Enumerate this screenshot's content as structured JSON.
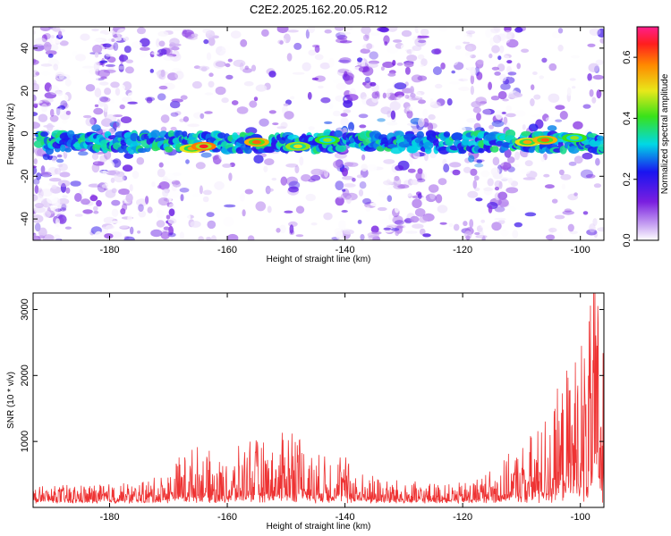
{
  "title": "C2E2.2025.162.20.05.R12",
  "chart_data": [
    {
      "type": "heatmap",
      "xlabel": "Height of straight line (km)",
      "ylabel": "Frequency (Hz)",
      "xlim": [
        -193,
        -96
      ],
      "ylim": [
        -50,
        50
      ],
      "x_ticks": [
        -180,
        -160,
        -140,
        -120,
        -100
      ],
      "y_ticks": [
        -40,
        -20,
        0,
        20,
        40
      ],
      "colorbar": {
        "label": "Normalized spectral amplitude",
        "range": [
          0,
          0.7
        ],
        "ticks": [
          0.0,
          0.2,
          0.4,
          0.6
        ]
      },
      "band": {
        "center_frequency": -4,
        "half_width": 4,
        "peaks": [
          {
            "x": -166,
            "y": -7,
            "value": 0.55
          },
          {
            "x": -164,
            "y": -6,
            "value": 0.65
          },
          {
            "x": -155,
            "y": -4,
            "value": 0.6
          },
          {
            "x": -148,
            "y": -6,
            "value": 0.5
          },
          {
            "x": -143,
            "y": -3,
            "value": 0.45
          },
          {
            "x": -109,
            "y": -4,
            "value": 0.55
          },
          {
            "x": -106,
            "y": -3,
            "value": 0.6
          },
          {
            "x": -101,
            "y": -2,
            "value": 0.45
          }
        ]
      }
    },
    {
      "type": "line",
      "xlabel": "Height of straight line (km)",
      "ylabel": "SNR (10 * v/v)",
      "xlim": [
        -193,
        -96
      ],
      "ylim": [
        0,
        3250
      ],
      "x_ticks": [
        -180,
        -160,
        -140,
        -120,
        -100
      ],
      "y_ticks": [
        1000,
        2000,
        3000
      ],
      "color": "#ee3333",
      "envelope": [
        {
          "x": -193,
          "y": 250
        },
        {
          "x": -175,
          "y": 300
        },
        {
          "x": -170,
          "y": 450
        },
        {
          "x": -168,
          "y": 700
        },
        {
          "x": -165,
          "y": 800
        },
        {
          "x": -160,
          "y": 550
        },
        {
          "x": -156,
          "y": 1000
        },
        {
          "x": -152,
          "y": 750
        },
        {
          "x": -149,
          "y": 1300
        },
        {
          "x": -145,
          "y": 650
        },
        {
          "x": -141,
          "y": 800
        },
        {
          "x": -138,
          "y": 450
        },
        {
          "x": -130,
          "y": 300
        },
        {
          "x": -120,
          "y": 280
        },
        {
          "x": -113,
          "y": 600
        },
        {
          "x": -108,
          "y": 1000
        },
        {
          "x": -104,
          "y": 1500
        },
        {
          "x": -101,
          "y": 2200
        },
        {
          "x": -99,
          "y": 2500
        },
        {
          "x": -97.5,
          "y": 3250
        },
        {
          "x": -96,
          "y": 3100
        }
      ]
    }
  ]
}
